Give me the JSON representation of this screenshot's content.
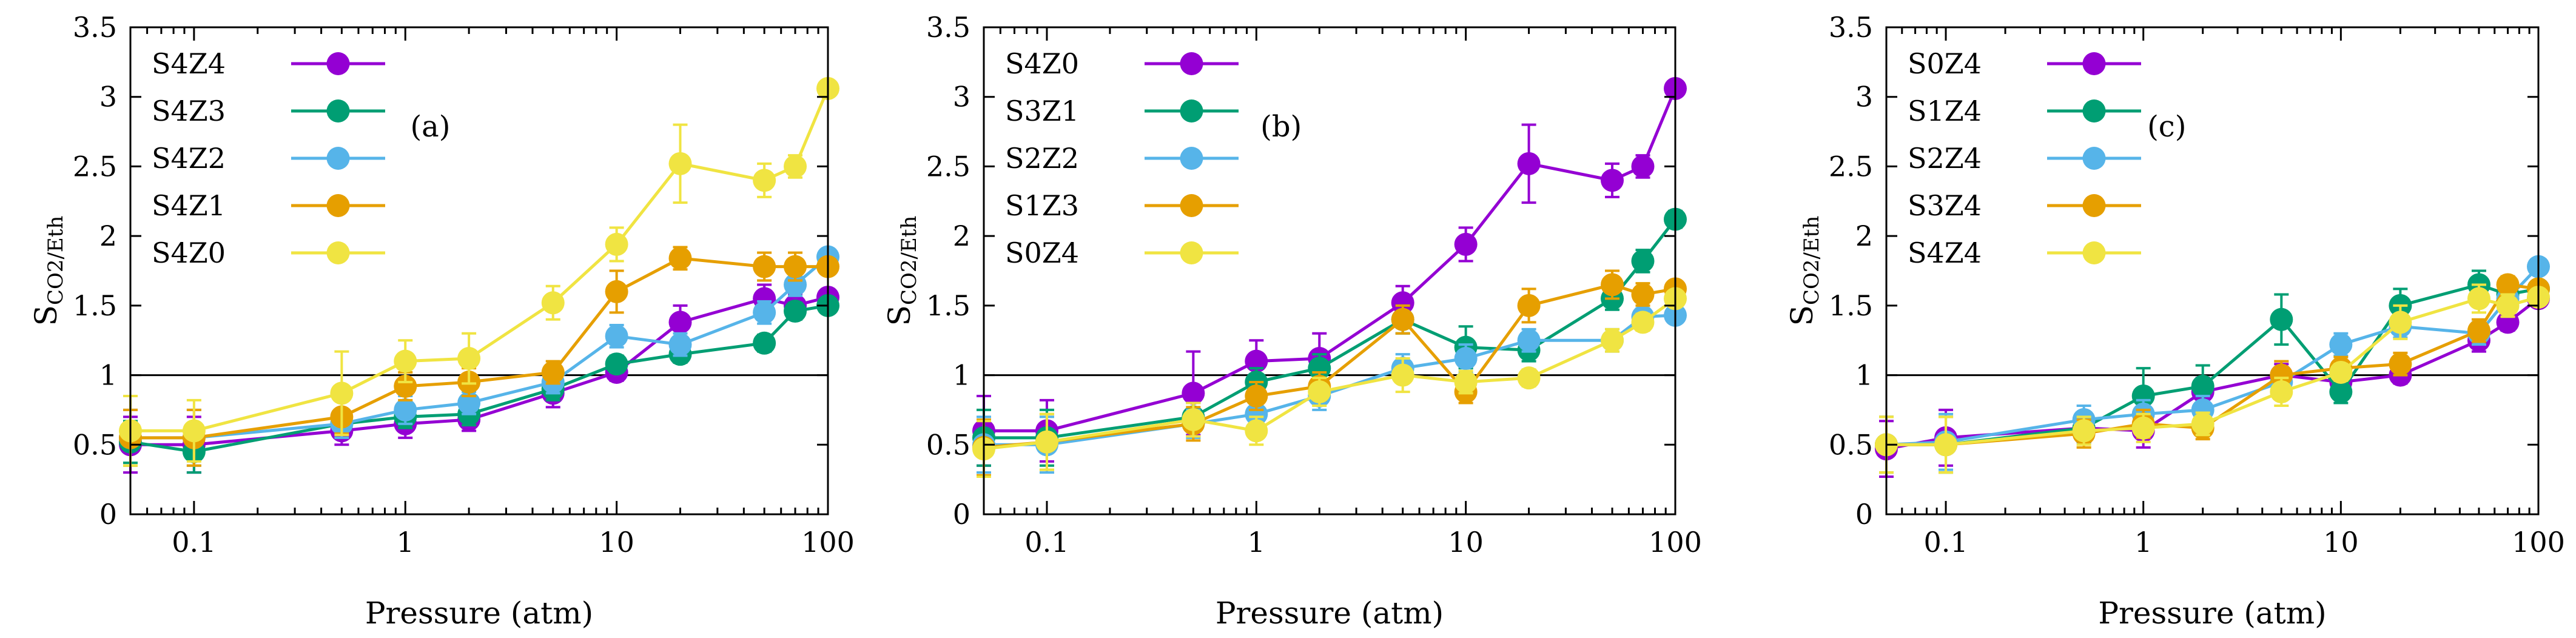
{
  "chart_data": [
    {
      "type": "line",
      "panel_label": "(a)",
      "xlabel": "Pressure (atm)",
      "ylabel_main": "S",
      "ylabel_sub": "CO2/Eth",
      "xscale": "log",
      "xlim": [
        0.05,
        100
      ],
      "ylim": [
        0,
        3.5
      ],
      "xticks": [
        0.1,
        1,
        10,
        100
      ],
      "xtick_labels": [
        "0.1",
        "1",
        "10",
        "100"
      ],
      "yticks": [
        0,
        0.5,
        1,
        1.5,
        2,
        2.5,
        3,
        3.5
      ],
      "ytick_labels": [
        "0",
        "0.5",
        "1",
        "1.5",
        "2",
        "2.5",
        "3",
        "3.5"
      ],
      "reference_line_y": 1,
      "x": [
        0.05,
        0.1,
        0.5,
        1,
        2,
        5,
        10,
        20,
        50,
        70,
        100
      ],
      "series": [
        {
          "name": "S4Z4",
          "color": "#9400D3",
          "values": [
            0.5,
            0.5,
            0.6,
            0.65,
            0.68,
            0.87,
            1.02,
            1.38,
            1.55,
            1.5,
            1.56
          ],
          "errors": [
            0.2,
            0.2,
            0.1,
            0.1,
            0.08,
            0.1,
            0.06,
            0.12,
            0.1,
            0.08,
            0.05
          ]
        },
        {
          "name": "S4Z3",
          "color": "#009E73",
          "values": [
            0.52,
            0.45,
            0.65,
            0.7,
            0.72,
            0.9,
            1.08,
            1.15,
            1.23,
            1.46,
            1.5
          ],
          "errors": [
            0.15,
            0.15,
            0.1,
            0.08,
            0.08,
            0.08,
            0.06,
            0.06,
            0.06,
            0.06,
            0.05
          ]
        },
        {
          "name": "S4Z2",
          "color": "#56B4E9",
          "values": [
            0.55,
            0.55,
            0.65,
            0.75,
            0.8,
            0.95,
            1.28,
            1.22,
            1.45,
            1.65,
            1.85
          ],
          "errors": [
            0.2,
            0.2,
            0.1,
            0.1,
            0.08,
            0.08,
            0.08,
            0.08,
            0.08,
            0.08,
            0.05
          ]
        },
        {
          "name": "S4Z1",
          "color": "#E69F00",
          "values": [
            0.55,
            0.55,
            0.7,
            0.92,
            0.95,
            1.02,
            1.6,
            1.84,
            1.78,
            1.78,
            1.78
          ],
          "errors": [
            0.2,
            0.2,
            0.12,
            0.1,
            0.1,
            0.08,
            0.15,
            0.08,
            0.1,
            0.1,
            0.05
          ]
        },
        {
          "name": "S4Z0",
          "color": "#F0E442",
          "values": [
            0.6,
            0.6,
            0.87,
            1.1,
            1.12,
            1.52,
            1.94,
            2.52,
            2.4,
            2.5,
            3.06
          ],
          "errors": [
            0.25,
            0.22,
            0.3,
            0.15,
            0.18,
            0.12,
            0.12,
            0.28,
            0.12,
            0.08,
            0.04
          ]
        }
      ]
    },
    {
      "type": "line",
      "panel_label": "(b)",
      "xlabel": "Pressure (atm)",
      "ylabel_main": "S",
      "ylabel_sub": "CO2/Eth",
      "xscale": "log",
      "xlim": [
        0.05,
        100
      ],
      "ylim": [
        0,
        3.5
      ],
      "xticks": [
        0.1,
        1,
        10,
        100
      ],
      "xtick_labels": [
        "0.1",
        "1",
        "10",
        "100"
      ],
      "yticks": [
        0,
        0.5,
        1,
        1.5,
        2,
        2.5,
        3,
        3.5
      ],
      "ytick_labels": [
        "0",
        "0.5",
        "1",
        "1.5",
        "2",
        "2.5",
        "3",
        "3.5"
      ],
      "reference_line_y": 1,
      "x": [
        0.05,
        0.1,
        0.5,
        1,
        2,
        5,
        10,
        20,
        50,
        70,
        100
      ],
      "series": [
        {
          "name": "S4Z0",
          "color": "#9400D3",
          "values": [
            0.6,
            0.6,
            0.87,
            1.1,
            1.12,
            1.52,
            1.94,
            2.52,
            2.4,
            2.5,
            3.06
          ],
          "errors": [
            0.25,
            0.22,
            0.3,
            0.15,
            0.18,
            0.12,
            0.12,
            0.28,
            0.12,
            0.08,
            0.04
          ]
        },
        {
          "name": "S3Z1",
          "color": "#009E73",
          "values": [
            0.55,
            0.55,
            0.7,
            0.95,
            1.05,
            1.4,
            1.2,
            1.18,
            1.55,
            1.82,
            2.12
          ],
          "errors": [
            0.2,
            0.2,
            0.1,
            0.1,
            0.1,
            0.1,
            0.15,
            0.08,
            0.08,
            0.08,
            0.06
          ]
        },
        {
          "name": "S2Z2",
          "color": "#56B4E9",
          "values": [
            0.5,
            0.5,
            0.65,
            0.72,
            0.85,
            1.05,
            1.12,
            1.25,
            1.25,
            1.42,
            1.43
          ],
          "errors": [
            0.2,
            0.2,
            0.1,
            0.1,
            0.1,
            0.1,
            0.1,
            0.08,
            0.08,
            0.06,
            0.05
          ]
        },
        {
          "name": "S1Z3",
          "color": "#E69F00",
          "values": [
            0.48,
            0.52,
            0.65,
            0.85,
            0.92,
            1.4,
            0.88,
            1.5,
            1.65,
            1.58,
            1.62
          ],
          "errors": [
            0.2,
            0.2,
            0.12,
            0.1,
            0.1,
            0.1,
            0.08,
            0.12,
            0.1,
            0.08,
            0.05
          ]
        },
        {
          "name": "S0Z4",
          "color": "#F0E442",
          "values": [
            0.47,
            0.52,
            0.68,
            0.6,
            0.88,
            1.0,
            0.95,
            0.98,
            1.25,
            1.38,
            1.55
          ],
          "errors": [
            0.2,
            0.2,
            0.12,
            0.1,
            0.1,
            0.12,
            0.08,
            0.06,
            0.08,
            0.06,
            0.05
          ]
        }
      ]
    },
    {
      "type": "line",
      "panel_label": "(c)",
      "xlabel": "Pressure (atm)",
      "ylabel_main": "S",
      "ylabel_sub": "CO2/Eth",
      "xscale": "log",
      "xlim": [
        0.05,
        100
      ],
      "ylim": [
        0,
        3.5
      ],
      "xticks": [
        0.1,
        1,
        10,
        100
      ],
      "xtick_labels": [
        "0.1",
        "1",
        "10",
        "100"
      ],
      "yticks": [
        0,
        0.5,
        1,
        1.5,
        2,
        2.5,
        3,
        3.5
      ],
      "ytick_labels": [
        "0",
        "0.5",
        "1",
        "1.5",
        "2",
        "2.5",
        "3",
        "3.5"
      ],
      "reference_line_y": 1,
      "x": [
        0.05,
        0.1,
        0.5,
        1,
        2,
        5,
        10,
        20,
        50,
        70,
        100
      ],
      "series": [
        {
          "name": "S0Z4",
          "color": "#9400D3",
          "values": [
            0.47,
            0.55,
            0.62,
            0.6,
            0.88,
            1.0,
            0.95,
            1.0,
            1.25,
            1.38,
            1.55
          ],
          "errors": [
            0.2,
            0.2,
            0.1,
            0.12,
            0.1,
            0.08,
            0.08,
            0.06,
            0.08,
            0.06,
            0.05
          ]
        },
        {
          "name": "S1Z4",
          "color": "#009E73",
          "values": [
            0.5,
            0.5,
            0.62,
            0.85,
            0.92,
            1.4,
            0.88,
            1.5,
            1.65,
            1.58,
            1.62
          ],
          "errors": [
            0.2,
            0.2,
            0.1,
            0.2,
            0.15,
            0.18,
            0.08,
            0.12,
            0.1,
            0.08,
            0.05
          ]
        },
        {
          "name": "S2Z4",
          "color": "#56B4E9",
          "values": [
            0.5,
            0.52,
            0.68,
            0.72,
            0.75,
            0.95,
            1.22,
            1.35,
            1.3,
            1.55,
            1.78
          ],
          "errors": [
            0.2,
            0.2,
            0.1,
            0.1,
            0.1,
            0.1,
            0.08,
            0.08,
            0.08,
            0.06,
            0.05
          ]
        },
        {
          "name": "S3Z4",
          "color": "#E69F00",
          "values": [
            0.5,
            0.5,
            0.58,
            0.65,
            0.62,
            1.0,
            1.05,
            1.08,
            1.32,
            1.65,
            1.62
          ],
          "errors": [
            0.2,
            0.2,
            0.1,
            0.1,
            0.08,
            0.1,
            0.08,
            0.08,
            0.08,
            0.06,
            0.05
          ]
        },
        {
          "name": "S4Z4",
          "color": "#F0E442",
          "values": [
            0.5,
            0.5,
            0.6,
            0.62,
            0.65,
            0.88,
            1.02,
            1.38,
            1.55,
            1.5,
            1.56
          ],
          "errors": [
            0.2,
            0.2,
            0.1,
            0.1,
            0.08,
            0.1,
            0.06,
            0.12,
            0.1,
            0.08,
            0.05
          ]
        }
      ]
    }
  ]
}
